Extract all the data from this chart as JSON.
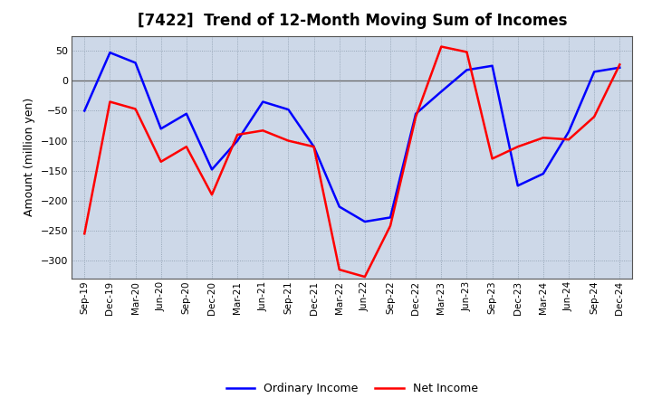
{
  "title": "[7422]  Trend of 12-Month Moving Sum of Incomes",
  "ylabel": "Amount (million yen)",
  "background_color": "#ffffff",
  "plot_background": "#cdd8e8",
  "grid_color": "#aabbcc",
  "ylim": [
    -330,
    75
  ],
  "yticks": [
    -300,
    -250,
    -200,
    -150,
    -100,
    -50,
    0,
    50
  ],
  "x_labels": [
    "Sep-19",
    "Dec-19",
    "Mar-20",
    "Jun-20",
    "Sep-20",
    "Dec-20",
    "Mar-21",
    "Jun-21",
    "Sep-21",
    "Dec-21",
    "Mar-22",
    "Jun-22",
    "Sep-22",
    "Dec-22",
    "Mar-23",
    "Jun-23",
    "Sep-23",
    "Dec-23",
    "Mar-24",
    "Jun-24",
    "Sep-24",
    "Dec-24"
  ],
  "ordinary_income": [
    -50,
    47,
    30,
    -80,
    -55,
    -148,
    -100,
    -35,
    -48,
    -110,
    -210,
    -235,
    -228,
    -55,
    -18,
    18,
    25,
    -175,
    -155,
    -85,
    15,
    22
  ],
  "net_income": [
    -255,
    -35,
    -47,
    -135,
    -110,
    -190,
    -90,
    -83,
    -100,
    -110,
    -315,
    -327,
    -242,
    -60,
    57,
    48,
    -130,
    -110,
    -95,
    -98,
    -60,
    27
  ],
  "ordinary_color": "#0000ff",
  "net_color": "#ff0000",
  "line_width": 1.8,
  "title_fontsize": 12,
  "ylabel_fontsize": 9,
  "tick_fontsize": 8,
  "xtick_fontsize": 7.5
}
